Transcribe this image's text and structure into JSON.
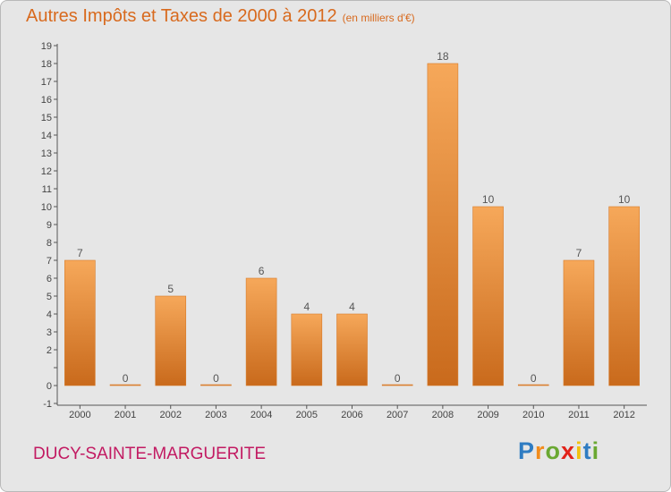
{
  "chart_data": {
    "type": "bar",
    "title": "Autres Impôts et Taxes de 2000 à 2012",
    "subtitle": "(en milliers d'€)",
    "categories": [
      "2000",
      "2001",
      "2002",
      "2003",
      "2004",
      "2005",
      "2006",
      "2007",
      "2008",
      "2009",
      "2010",
      "2011",
      "2012"
    ],
    "values": [
      7,
      0,
      5,
      0,
      6,
      4,
      4,
      0,
      18,
      10,
      0,
      7,
      10
    ],
    "ylim": [
      -1,
      19
    ],
    "yticks": [
      -1,
      0,
      1,
      2,
      3,
      4,
      5,
      6,
      7,
      8,
      9,
      10,
      11,
      12,
      13,
      14,
      15,
      16,
      17,
      18,
      19
    ],
    "ytick_labels": [
      "-1",
      "0",
      "",
      "2",
      "3",
      "4",
      "5",
      "6",
      "7",
      "8",
      "9",
      "10",
      "11",
      "12",
      "13",
      "14",
      "15",
      "16",
      "17",
      "18",
      "19"
    ],
    "grid": false,
    "colors": {
      "bar_light": "#f6a85a",
      "bar_dark": "#c96a1c",
      "bar_stroke": "#d77b2a",
      "plot_bg": "#e6e6e6"
    }
  },
  "commune": "DUCY-SAINTE-MARGUERITE",
  "logo": {
    "text": "Proxiti",
    "letter_colors": [
      "#2f7cc2",
      "#f28c1c",
      "#6aa832",
      "#e2231a",
      "#f2c10e",
      "#2f7cc2",
      "#6aa832"
    ]
  }
}
